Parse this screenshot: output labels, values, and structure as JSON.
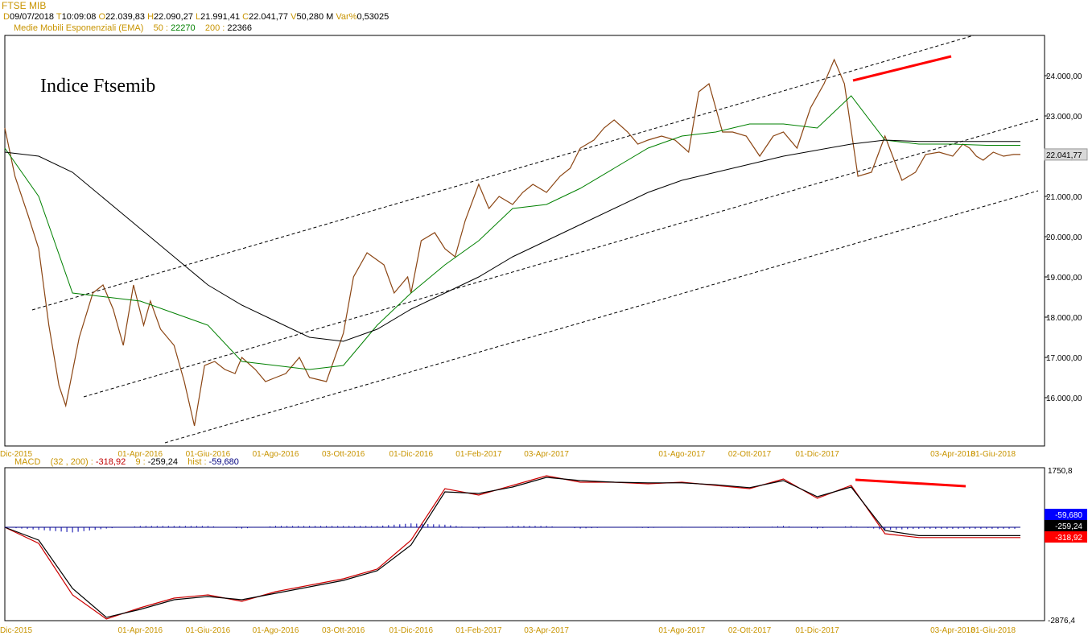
{
  "header": {
    "instrument": "FTSE MIB",
    "quote": {
      "d_label": "D",
      "d_value": "09/07/2018",
      "t_label": "T",
      "t_value": "10:09:08",
      "o_label": "O",
      "o_value": "22.039,83",
      "h_label": "H",
      "h_value": "22.090,27",
      "l_label": "L",
      "l_value": "21.991,41",
      "c_label": "C",
      "c_value": "22.041,77",
      "v_label": "V",
      "v_value": "50,280 M",
      "var_label": "Var%",
      "var_value": "0,53025"
    },
    "ema": {
      "label": "Medie Mobili Esponenziali (EMA)",
      "p1_label": "50 :",
      "p1_value": "22270",
      "p2_label": "200 :",
      "p2_value": "22366"
    },
    "macd": {
      "label": "MACD",
      "params": "(32 , 200) :",
      "macd_value": "-318,92",
      "signal_label": "9 :",
      "signal_value": "-259,24",
      "hist_label": "hist :",
      "hist_value": "-59,680"
    }
  },
  "chart_data": [
    {
      "type": "line",
      "annotation": "Indice Ftsemib",
      "x_ticks": [
        "Dic-2015",
        "01-Apr-2016",
        "01-Giu-2016",
        "01-Ago-2016",
        "03-Ott-2016",
        "01-Dic-2016",
        "01-Feb-2017",
        "03-Apr-2017",
        "01-Ago-2017",
        "02-Ott-2017",
        "01-Dic-2017",
        "03-Apr-2018",
        "01-Giu-2018"
      ],
      "y_ticks": [
        "24.000,00",
        "23.000,00",
        "22.000,00",
        "21.000,00",
        "20.000,00",
        "19.000,00",
        "18.000,00",
        "17.000,00",
        "16.000,00"
      ],
      "last_value_label": "22.041,77",
      "ylim": [
        14800,
        25000
      ],
      "x_months": [
        0,
        30
      ],
      "series": [
        {
          "name": "FTSE MIB",
          "color": "#8b4513",
          "x": [
            0,
            0.3,
            0.7,
            1.0,
            1.3,
            1.6,
            1.8,
            2.2,
            2.6,
            2.9,
            3.2,
            3.5,
            3.8,
            4.1,
            4.3,
            4.6,
            5.0,
            5.3,
            5.6,
            5.9,
            6.2,
            6.5,
            6.8,
            7.0,
            7.4,
            7.7,
            8.0,
            8.3,
            8.7,
            9.0,
            9.5,
            10.0,
            10.3,
            10.7,
            11.2,
            11.5,
            11.9,
            12.0,
            12.3,
            12.7,
            13.0,
            13.3,
            13.6,
            14.0,
            14.3,
            14.6,
            15.0,
            15.3,
            15.6,
            16.0,
            16.4,
            16.7,
            17.0,
            17.4,
            17.7,
            18.0,
            18.4,
            18.7,
            19.0,
            19.4,
            19.8,
            20.2,
            20.5,
            20.8,
            21.2,
            21.5,
            21.9,
            22.3,
            22.7,
            23.0,
            23.4,
            23.8,
            24.2,
            24.5,
            24.8,
            25.2,
            25.6,
            26.0,
            26.5,
            26.9,
            27.2,
            27.6,
            28.0,
            28.3,
            28.5,
            28.7,
            28.9,
            29.2,
            29.5,
            29.8,
            30.0
          ],
          "values": [
            22700,
            21500,
            20500,
            19700,
            17800,
            16300,
            15800,
            17500,
            18600,
            18800,
            18200,
            17300,
            18800,
            17800,
            18400,
            17700,
            17300,
            16400,
            15300,
            16800,
            16900,
            16700,
            16600,
            17000,
            16700,
            16400,
            16500,
            16600,
            17000,
            16500,
            16400,
            17600,
            19000,
            19600,
            19300,
            18600,
            19000,
            18600,
            19900,
            20100,
            19700,
            19500,
            20400,
            21300,
            20700,
            21000,
            20800,
            21100,
            21300,
            21100,
            21500,
            21700,
            22200,
            22400,
            22700,
            22900,
            22600,
            22300,
            22400,
            22500,
            22400,
            22100,
            23600,
            23800,
            22600,
            22600,
            22500,
            22000,
            22500,
            22600,
            22200,
            23200,
            23800,
            24400,
            23800,
            21500,
            21600,
            22500,
            21400,
            21600,
            22042,
            22100,
            22000,
            22300,
            22200,
            22000,
            21900,
            22100,
            22000,
            22041,
            22041
          ]
        },
        {
          "name": "EMA 50",
          "color": "#008000",
          "x": [
            0,
            1,
            2,
            3,
            4,
            5,
            6,
            7,
            8,
            9,
            10,
            11,
            12,
            13,
            14,
            15,
            16,
            17,
            18,
            19,
            20,
            21,
            22,
            23,
            24,
            25,
            26,
            27,
            28,
            29,
            30
          ],
          "values": [
            22200,
            21000,
            18600,
            18500,
            18400,
            18100,
            17800,
            16900,
            16800,
            16700,
            16800,
            17800,
            18600,
            19300,
            19900,
            20700,
            20800,
            21200,
            21700,
            22200,
            22500,
            22600,
            22800,
            22800,
            22700,
            23500,
            22400,
            22300,
            22300,
            22270,
            22270
          ]
        },
        {
          "name": "EMA 200",
          "color": "#000000",
          "x": [
            0,
            1,
            2,
            3,
            4,
            5,
            6,
            7,
            8,
            9,
            10,
            11,
            12,
            13,
            14,
            15,
            16,
            17,
            18,
            19,
            20,
            21,
            22,
            23,
            24,
            25,
            26,
            27,
            28,
            29,
            30
          ],
          "values": [
            22100,
            22000,
            21600,
            20900,
            20200,
            19500,
            18800,
            18300,
            17900,
            17500,
            17400,
            17700,
            18200,
            18600,
            19000,
            19500,
            19900,
            20300,
            20700,
            21100,
            21400,
            21600,
            21800,
            22000,
            22150,
            22300,
            22400,
            22366,
            22366,
            22366,
            22366
          ]
        }
      ]
    },
    {
      "type": "line",
      "title": "MACD",
      "y_ticks": [
        "1750,8",
        "-2876,4"
      ],
      "value_labels": [
        "-59,680",
        "-259,24",
        "-318,92"
      ],
      "ylim": [
        -2876.4,
        1750.8
      ],
      "series": [
        {
          "name": "MACD",
          "color": "#cc0000",
          "x": [
            0,
            1,
            2,
            3,
            4,
            5,
            6,
            7,
            8,
            9,
            10,
            11,
            12,
            13,
            14,
            15,
            16,
            17,
            18,
            19,
            20,
            21,
            22,
            23,
            24,
            25,
            26,
            27,
            28,
            29,
            30
          ],
          "values": [
            0,
            -500,
            -2100,
            -2850,
            -2500,
            -2200,
            -2100,
            -2300,
            -2000,
            -1800,
            -1600,
            -1300,
            -400,
            1200,
            1000,
            1300,
            1600,
            1400,
            1400,
            1350,
            1400,
            1300,
            1200,
            1500,
            900,
            1300,
            -200,
            -319,
            -319,
            -319,
            -319
          ]
        },
        {
          "name": "Signal",
          "color": "#000000",
          "x": [
            0,
            1,
            2,
            3,
            4,
            5,
            6,
            7,
            8,
            9,
            10,
            11,
            12,
            13,
            14,
            15,
            16,
            17,
            18,
            19,
            20,
            21,
            22,
            23,
            24,
            25,
            26,
            27,
            28,
            29,
            30
          ],
          "values": [
            0,
            -400,
            -1900,
            -2800,
            -2550,
            -2250,
            -2150,
            -2250,
            -2050,
            -1850,
            -1650,
            -1350,
            -550,
            1100,
            1050,
            1250,
            1550,
            1450,
            1400,
            1380,
            1380,
            1320,
            1230,
            1450,
            950,
            1250,
            -100,
            -259,
            -259,
            -259,
            -259
          ]
        }
      ]
    }
  ],
  "x_axis_color": "#c89400",
  "trendline_color": "#ff0000"
}
